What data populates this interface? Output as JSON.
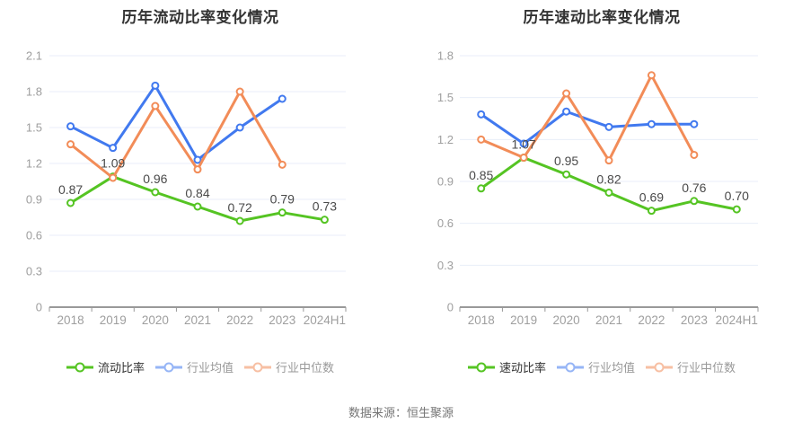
{
  "page": {
    "source_note": "数据来源：恒生聚源"
  },
  "colors": {
    "green": "#55c423",
    "blue": "#4179ef",
    "orange": "#f28c58",
    "grid": "#e8eef8",
    "axis": "#999999",
    "tick_label": "#9e9e9e",
    "data_label": "#4a4a4a",
    "title": "#333333",
    "legend_active": "#333333",
    "legend_inactive": "#999999",
    "background": "#ffffff"
  },
  "chart_data": [
    {
      "type": "line",
      "title": "历年流动比率变化情况",
      "categories": [
        "2018",
        "2019",
        "2020",
        "2021",
        "2022",
        "2023",
        "2024H1"
      ],
      "ylim": [
        0,
        2.1
      ],
      "yticks": [
        0,
        0.3,
        0.6,
        0.9,
        1.2,
        1.5,
        1.8,
        2.1
      ],
      "grid": true,
      "legend_position": "bottom",
      "xlabel": "",
      "ylabel": "",
      "series": [
        {
          "name": "流动比率",
          "color_key": "green",
          "labels_shown": true,
          "values": [
            0.87,
            1.09,
            0.96,
            0.84,
            0.72,
            0.79,
            0.73
          ]
        },
        {
          "name": "行业均值",
          "color_key": "blue",
          "labels_shown": false,
          "values": [
            1.51,
            1.33,
            1.85,
            1.23,
            1.5,
            1.74,
            null
          ]
        },
        {
          "name": "行业中位数",
          "color_key": "orange",
          "labels_shown": false,
          "values": [
            1.36,
            1.08,
            1.68,
            1.15,
            1.8,
            1.19,
            null
          ]
        }
      ]
    },
    {
      "type": "line",
      "title": "历年速动比率变化情况",
      "categories": [
        "2018",
        "2019",
        "2020",
        "2021",
        "2022",
        "2023",
        "2024H1"
      ],
      "ylim": [
        0,
        1.8
      ],
      "yticks": [
        0,
        0.3,
        0.6,
        0.9,
        1.2,
        1.5,
        1.8
      ],
      "grid": true,
      "legend_position": "bottom",
      "xlabel": "",
      "ylabel": "",
      "series": [
        {
          "name": "速动比率",
          "color_key": "green",
          "labels_shown": true,
          "values": [
            0.85,
            1.07,
            0.95,
            0.82,
            0.69,
            0.76,
            0.7
          ]
        },
        {
          "name": "行业均值",
          "color_key": "blue",
          "labels_shown": false,
          "values": [
            1.38,
            1.17,
            1.4,
            1.29,
            1.31,
            1.31,
            null
          ]
        },
        {
          "name": "行业中位数",
          "color_key": "orange",
          "labels_shown": false,
          "values": [
            1.2,
            1.07,
            1.53,
            1.05,
            1.66,
            1.09,
            null
          ]
        }
      ]
    }
  ]
}
